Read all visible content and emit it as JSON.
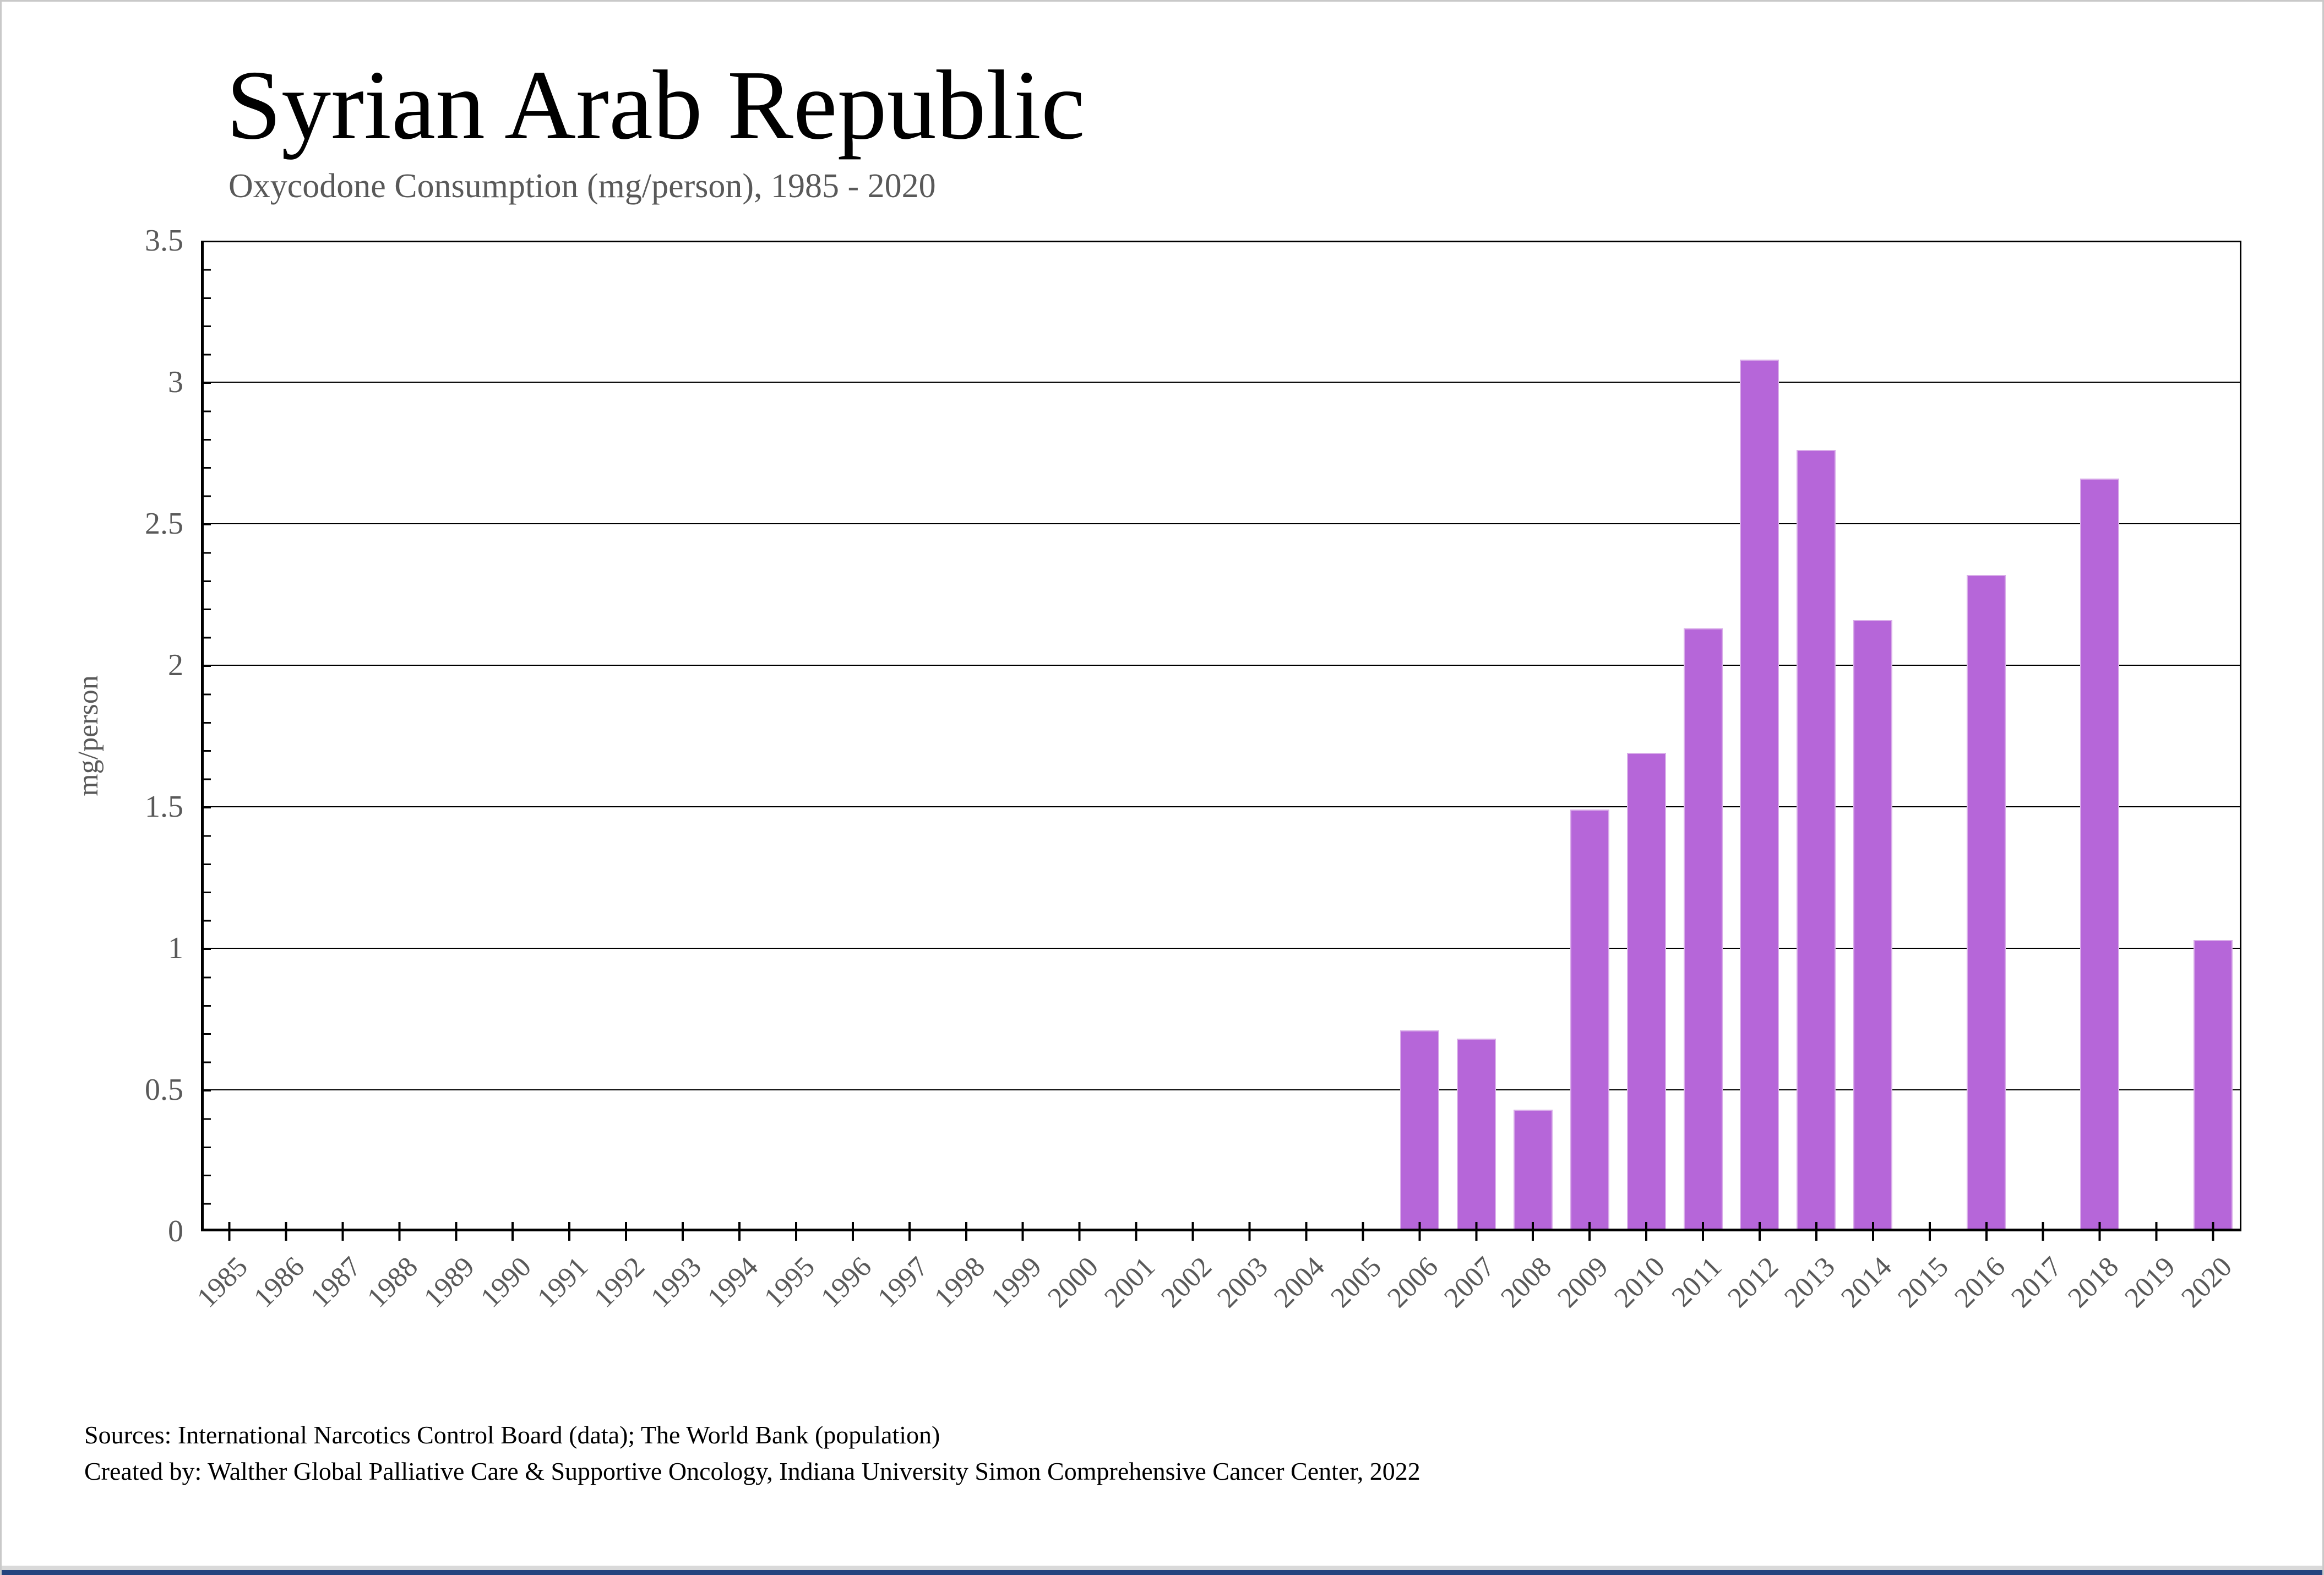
{
  "page": {
    "title": "Syrian Arab Republic",
    "subtitle": "Oxycodone Consumption (mg/person), 1985 - 2020",
    "footer_lines": [
      "Sources: International Narcotics Control Board (data); The World Bank (population)",
      "Created by: Walther Global Palliative Care & Supportive Oncology, Indiana University Simon Comprehensive Cancer Center, 2022"
    ]
  },
  "colors": {
    "bar_fill": "#b666d9",
    "bar_edge": "#d9ade9",
    "axis_text": "#595959",
    "gridline": "#000000",
    "bottom_strip_blue": "#24437e",
    "bottom_strip_gray": "#d9d9d9"
  },
  "chart_data": {
    "type": "bar",
    "title": "Syrian Arab Republic",
    "subtitle": "Oxycodone Consumption (mg/person), 1985 - 2020",
    "xlabel": "",
    "ylabel": "mg/person",
    "ylim": [
      0,
      3.5
    ],
    "ytick_step": 0.5,
    "ytick_minor_step": 0.1,
    "yticks": [
      0,
      0.5,
      1,
      1.5,
      2,
      2.5,
      3,
      3.5
    ],
    "grid": "horizontal",
    "legend": "none",
    "bar_color": "#b666d9",
    "categories": [
      "1985",
      "1986",
      "1987",
      "1988",
      "1989",
      "1990",
      "1991",
      "1992",
      "1993",
      "1994",
      "1995",
      "1996",
      "1997",
      "1998",
      "1999",
      "2000",
      "2001",
      "2002",
      "2003",
      "2004",
      "2005",
      "2006",
      "2007",
      "2008",
      "2009",
      "2010",
      "2011",
      "2012",
      "2013",
      "2014",
      "2015",
      "2016",
      "2017",
      "2018",
      "2019",
      "2020"
    ],
    "values": [
      null,
      null,
      null,
      null,
      null,
      null,
      null,
      null,
      null,
      null,
      null,
      null,
      null,
      null,
      null,
      null,
      null,
      null,
      null,
      null,
      null,
      0.71,
      0.68,
      0.43,
      1.49,
      1.69,
      2.13,
      3.08,
      2.76,
      2.16,
      null,
      2.32,
      null,
      2.66,
      null,
      1.03
    ]
  }
}
